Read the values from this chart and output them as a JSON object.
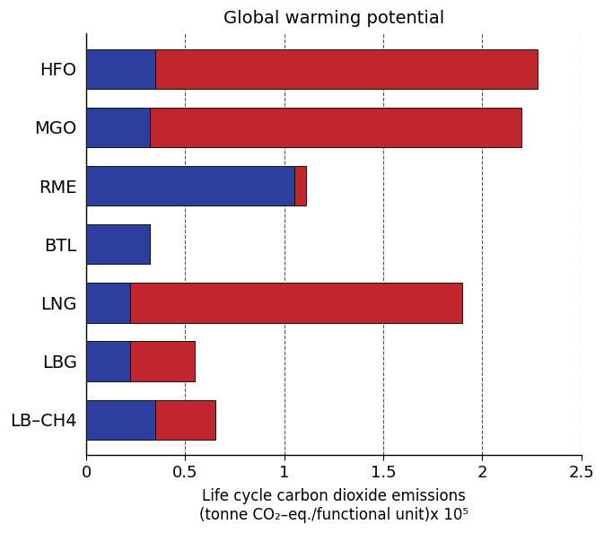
{
  "title": "Global warming potential",
  "xlabel_line1": "Life cycle carbon dioxide emissions",
  "xlabel_line2": "(tonne CO₂–eq./functional unit)x 10⁵",
  "categories": [
    "HFO",
    "MGO",
    "RME",
    "BTL",
    "LNG",
    "LBG",
    "LB–CH4"
  ],
  "blue_values": [
    0.35,
    0.32,
    1.05,
    0.32,
    0.22,
    0.22,
    0.35
  ],
  "red_values": [
    1.93,
    1.88,
    0.06,
    0.0,
    1.68,
    0.33,
    0.3
  ],
  "blue_color": "#2D3F9E",
  "red_color": "#C0272D",
  "bar_edgecolor": "#111111",
  "xlim": [
    0,
    2.5
  ],
  "xticks": [
    0,
    0.5,
    1.0,
    1.5,
    2.0,
    2.5
  ],
  "xticklabels": [
    "0",
    "0.5",
    "1",
    "1.5",
    "2",
    "2.5"
  ],
  "grid_color": "#555555",
  "title_fontsize": 14,
  "label_fontsize": 12,
  "tick_fontsize": 13,
  "ytick_fontsize": 14,
  "bar_height": 0.68,
  "bar_linewidth": 0.7
}
